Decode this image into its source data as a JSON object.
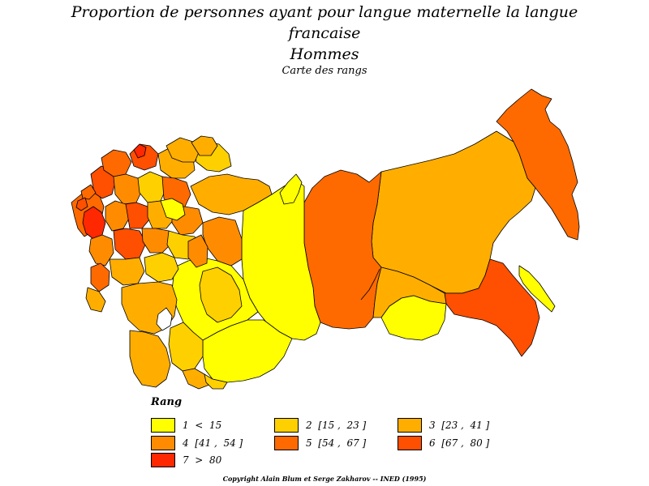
{
  "title": {
    "line1": "Proportion de personnes ayant pour langue maternelle la langue",
    "line2": "francaise",
    "line3": "Hommes",
    "subtitle": "Carte des rangs"
  },
  "legend": {
    "title": "Rang",
    "items": [
      {
        "label": "1  <  15",
        "color": "#ffff00"
      },
      {
        "label": "2  [15 ,  23 ]",
        "color": "#ffd000"
      },
      {
        "label": "3  [23 ,  41 ]",
        "color": "#ffae00"
      },
      {
        "label": "4  [41 ,  54 ]",
        "color": "#ff8c00"
      },
      {
        "label": "5  [54 ,  67 ]",
        "color": "#ff6a00"
      },
      {
        "label": "6  [67 ,  80 ]",
        "color": "#ff4f00"
      },
      {
        "label": "7  >  80",
        "color": "#ff2800"
      }
    ]
  },
  "copyright": "Copyright Alain Blum et Serge Zakharov  --  INED (1995)"
}
